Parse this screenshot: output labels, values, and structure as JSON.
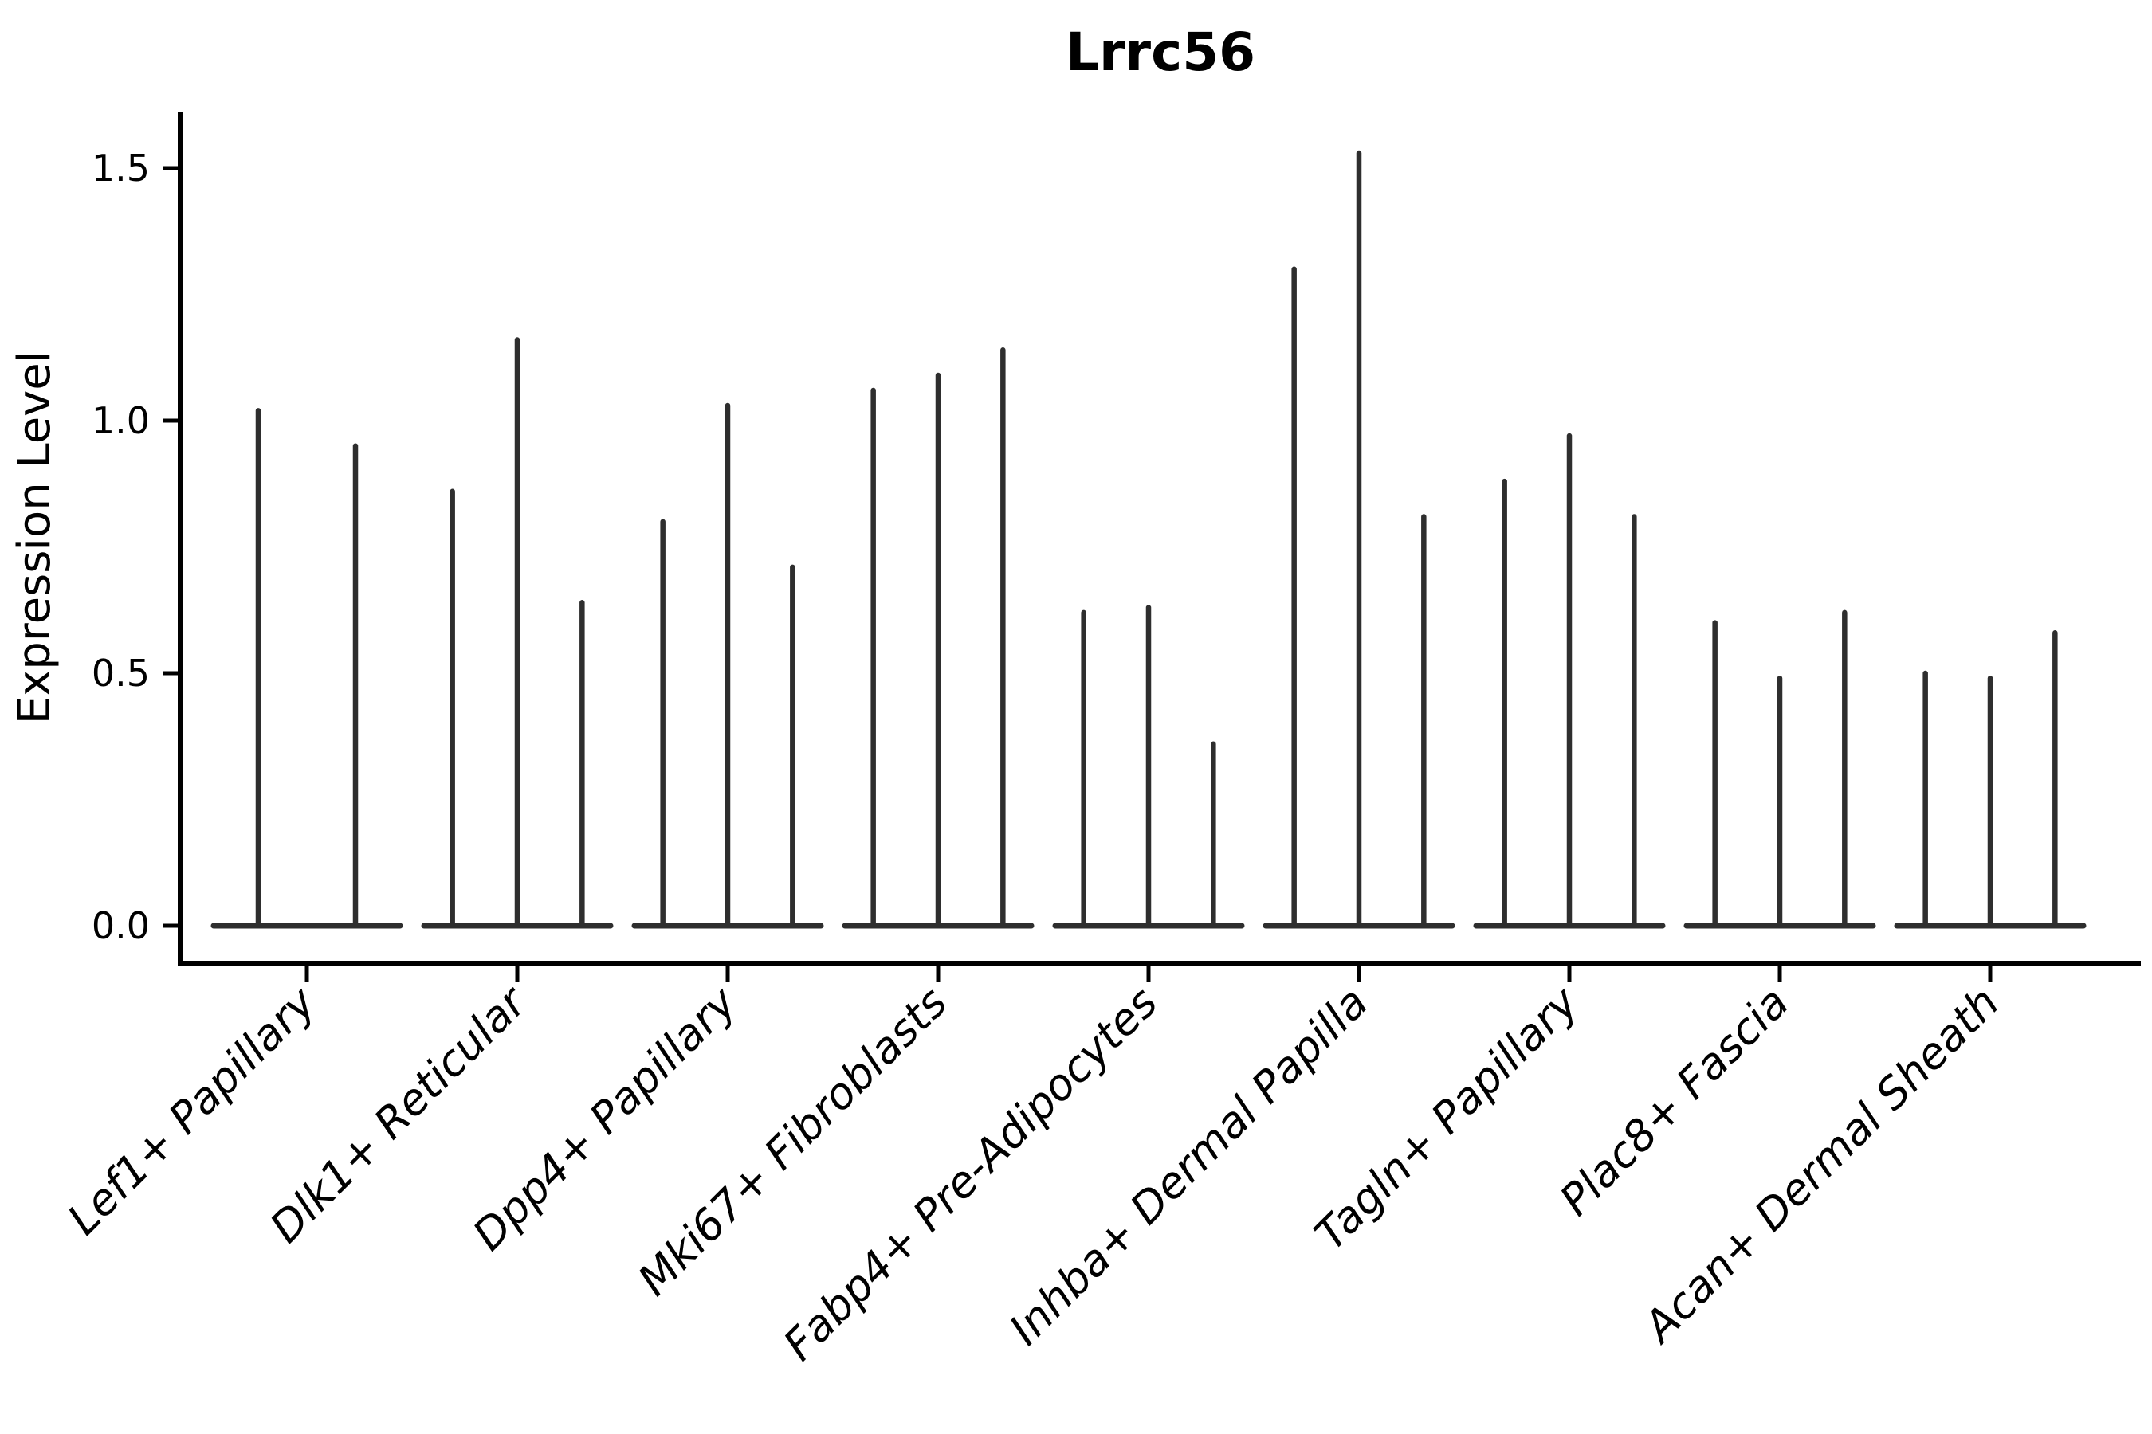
{
  "title": "Lrrc56",
  "y_axis": {
    "label": "Expression Level",
    "tick_labels": [
      "0.0",
      "0.5",
      "1.0",
      "1.5"
    ]
  },
  "colors": {
    "ink": "#000000",
    "violin": "#2e2e2e"
  },
  "chart_data": {
    "type": "violin",
    "title": "Lrrc56",
    "xlabel": "",
    "ylabel": "Expression Level",
    "ylim": [
      -0.07,
      1.61
    ],
    "yticks": [
      0,
      0.5,
      1.0,
      1.5
    ],
    "ytick_labels": [
      "0.0",
      "0.5",
      "1.0",
      "1.5"
    ],
    "grid": false,
    "legend_position": "none",
    "x_tick_rotation": 45,
    "categories": [
      "Lef1+ Papillary",
      "Dlk1+ Reticular",
      "Dpp4+ Papillary",
      "Mki67+ Fibroblasts",
      "Fabp4+ Pre-Adipocytes",
      "Inhba+ Dermal Papilla",
      "Tagln+ Papillary",
      "Plac8+ Fascia",
      "Acan+ Dermal Sheath"
    ],
    "groups": [
      {
        "category": "Lef1+ Papillary",
        "violin_peak_values": [
          1.02,
          0.95
        ]
      },
      {
        "category": "Dlk1+ Reticular",
        "violin_peak_values": [
          0.86,
          1.16,
          0.64
        ]
      },
      {
        "category": "Dpp4+ Papillary",
        "violin_peak_values": [
          0.8,
          1.03,
          0.71
        ]
      },
      {
        "category": "Mki67+ Fibroblasts",
        "violin_peak_values": [
          1.06,
          1.09,
          1.14
        ]
      },
      {
        "category": "Fabp4+ Pre-Adipocytes",
        "violin_peak_values": [
          0.62,
          0.63,
          0.36
        ]
      },
      {
        "category": "Inhba+ Dermal Papilla",
        "violin_peak_values": [
          1.3,
          1.53,
          0.81
        ]
      },
      {
        "category": "Tagln+ Papillary",
        "violin_peak_values": [
          0.88,
          0.97,
          0.81
        ]
      },
      {
        "category": "Plac8+ Fascia",
        "violin_peak_values": [
          0.6,
          0.49,
          0.62
        ]
      },
      {
        "category": "Acan+ Dermal Sheath",
        "violin_peak_values": [
          0.5,
          0.49,
          0.58
        ]
      }
    ],
    "note": "Each violin is collapsed flat at 0 expression with a thin vertical spike reaching the listed maximum expression value"
  }
}
